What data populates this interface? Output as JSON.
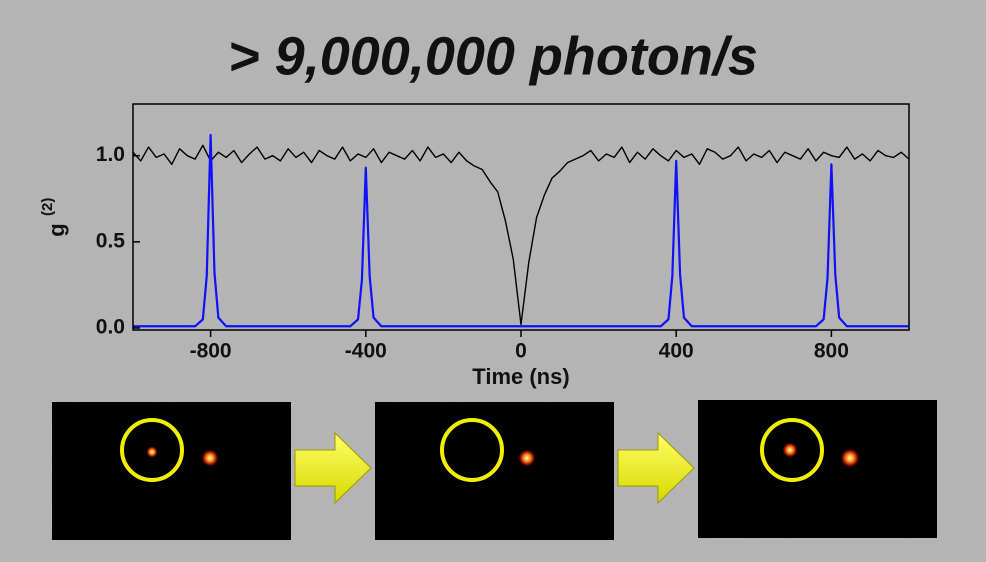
{
  "chart_data": {
    "type": "line",
    "title": "> 9,000,000 photon/s",
    "xlabel": "Time (ns)",
    "ylabel": {
      "base": "g",
      "sup": "(2)"
    },
    "xlim": [
      -1000,
      1000
    ],
    "ylim": [
      0,
      1.3
    ],
    "xticks": [
      -800,
      -400,
      0,
      400,
      800
    ],
    "yticks": [
      {
        "value": 0,
        "label": "0.0"
      },
      {
        "value": 0.5,
        "label": "0.5"
      },
      {
        "value": 1,
        "label": "1.0"
      }
    ],
    "series": [
      {
        "color": "#000000",
        "x": [
          -1000,
          -980,
          -960,
          -940,
          -920,
          -900,
          -880,
          -860,
          -840,
          -820,
          -800,
          -780,
          -760,
          -740,
          -720,
          -700,
          -680,
          -660,
          -640,
          -620,
          -600,
          -580,
          -560,
          -540,
          -520,
          -500,
          -480,
          -460,
          -440,
          -420,
          -400,
          -380,
          -360,
          -340,
          -320,
          -300,
          -280,
          -260,
          -240,
          -220,
          -200,
          -180,
          -160,
          -140,
          -120,
          -100,
          -80,
          -60,
          -40,
          -20,
          0,
          20,
          40,
          60,
          80,
          100,
          120,
          140,
          160,
          180,
          200,
          220,
          240,
          260,
          280,
          300,
          320,
          340,
          360,
          380,
          400,
          420,
          440,
          460,
          480,
          500,
          520,
          540,
          560,
          580,
          600,
          620,
          640,
          660,
          680,
          700,
          720,
          740,
          760,
          780,
          800,
          820,
          840,
          860,
          880,
          900,
          920,
          940,
          960,
          980,
          1000
        ],
        "values": [
          1.02,
          0.97,
          1.05,
          0.99,
          1.01,
          0.95,
          1.04,
          1.0,
          0.98,
          1.06,
          0.97,
          1.02,
          0.99,
          1.03,
          0.96,
          1.01,
          1.05,
          0.98,
          1.0,
          0.97,
          1.04,
          0.99,
          1.02,
          0.96,
          1.03,
          1.0,
          0.98,
          1.05,
          0.97,
          1.01,
          0.99,
          1.04,
          0.96,
          1.02,
          1.0,
          0.98,
          1.03,
          0.97,
          1.05,
          0.99,
          1.01,
          0.96,
          1.02,
          0.97,
          0.94,
          0.92,
          0.85,
          0.79,
          0.62,
          0.4,
          0.02,
          0.38,
          0.64,
          0.77,
          0.87,
          0.91,
          0.96,
          0.98,
          1.0,
          1.03,
          0.97,
          1.01,
          0.99,
          1.05,
          0.96,
          1.02,
          0.98,
          1.04,
          1.0,
          0.97,
          1.03,
          0.99,
          1.01,
          0.95,
          1.04,
          1.02,
          0.98,
          1.0,
          1.05,
          0.97,
          1.01,
          0.99,
          1.03,
          0.96,
          1.02,
          1.0,
          0.98,
          1.04,
          0.97,
          1.02,
          1.0,
          0.99,
          1.05,
          0.98,
          1.01,
          0.97,
          1.03,
          1.0,
          0.99,
          1.02,
          0.98
        ]
      },
      {
        "color": "#1010ff",
        "x": [
          -1000,
          -840,
          -820,
          -810,
          -800,
          -790,
          -780,
          -760,
          -440,
          -420,
          -410,
          -400,
          -390,
          -380,
          -360,
          0,
          360,
          380,
          390,
          400,
          410,
          420,
          440,
          760,
          780,
          790,
          800,
          810,
          820,
          840,
          1000
        ],
        "values": [
          0.01,
          0.01,
          0.05,
          0.3,
          1.12,
          0.32,
          0.06,
          0.01,
          0.01,
          0.05,
          0.28,
          0.93,
          0.3,
          0.06,
          0.01,
          0.01,
          0.01,
          0.05,
          0.3,
          0.97,
          0.31,
          0.06,
          0.01,
          0.01,
          0.05,
          0.29,
          0.95,
          0.31,
          0.06,
          0.01,
          0.01
        ]
      }
    ]
  }
}
